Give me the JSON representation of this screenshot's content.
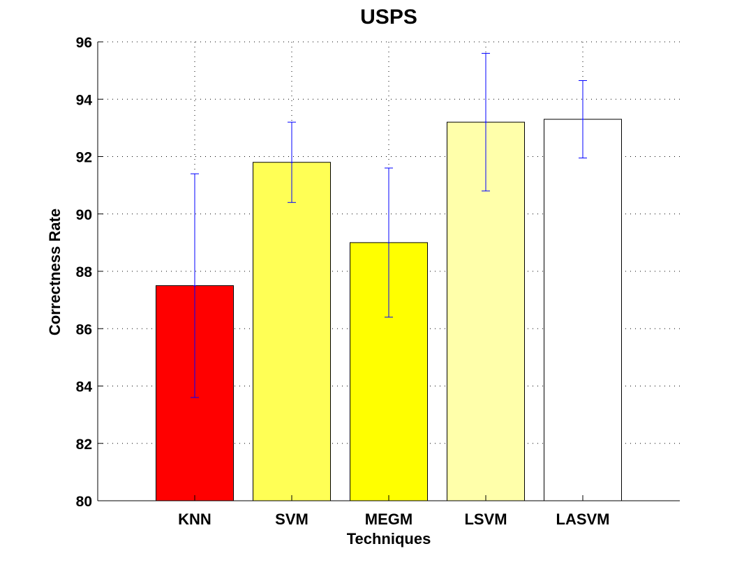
{
  "chart_data": {
    "type": "bar",
    "title": "USPS",
    "xlabel": "Techniques",
    "ylabel": "Correctness Rate",
    "categories": [
      "KNN",
      "SVM",
      "MEGM",
      "LSVM",
      "LASVM"
    ],
    "values": [
      87.5,
      91.8,
      89.0,
      93.2,
      93.3
    ],
    "error_low": [
      83.6,
      90.4,
      86.4,
      90.8,
      91.95
    ],
    "error_high": [
      91.4,
      93.2,
      91.6,
      95.6,
      94.65
    ],
    "bar_colors": [
      "#ff0000",
      "#ffff55",
      "#ffff00",
      "#ffffaa",
      "#ffffff"
    ],
    "errorbar_color": "#0000ff",
    "ylim": [
      80,
      96
    ],
    "yticks": [
      "80",
      "82",
      "84",
      "86",
      "88",
      "90",
      "92",
      "94",
      "96"
    ],
    "grid": true
  }
}
